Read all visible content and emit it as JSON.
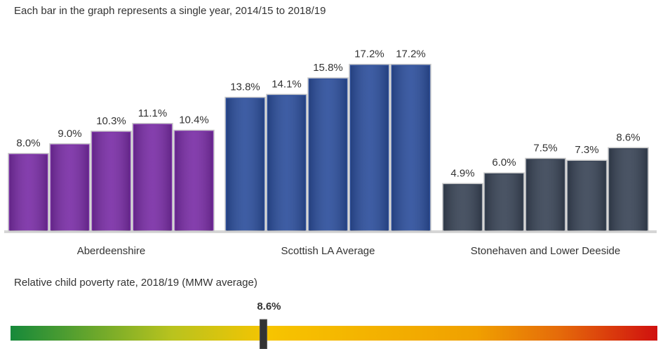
{
  "chart_data": [
    {
      "type": "bar",
      "subtitle": "Each bar in the graph represents a single year, 2014/15 to 2018/19",
      "groups": [
        {
          "name": "Aberdeenshire",
          "color": "#7a2ea6",
          "values": [
            8.0,
            9.0,
            10.3,
            11.1,
            10.4
          ],
          "value_labels": [
            "8.0%",
            "9.0%",
            "10.3%",
            "11.1%",
            "10.4%"
          ]
        },
        {
          "name": "Scottish LA Average",
          "color": "#2d4f9c",
          "values": [
            13.8,
            14.1,
            15.8,
            17.2,
            17.2
          ],
          "value_labels": [
            "13.8%",
            "14.1%",
            "15.8%",
            "17.2%",
            "17.2%"
          ]
        },
        {
          "name": "Stonehaven and Lower Deeside",
          "color": "#3a4557",
          "values": [
            4.9,
            6.0,
            7.5,
            7.3,
            8.6
          ],
          "value_labels": [
            "4.9%",
            "6.0%",
            "7.5%",
            "7.3%",
            "8.6%"
          ]
        }
      ]
    },
    {
      "type": "gauge",
      "title": "Relative child poverty rate, 2018/19 (MMW average)",
      "value": 8.6,
      "value_label": "8.6%",
      "xlim": [
        0,
        22
      ]
    }
  ]
}
